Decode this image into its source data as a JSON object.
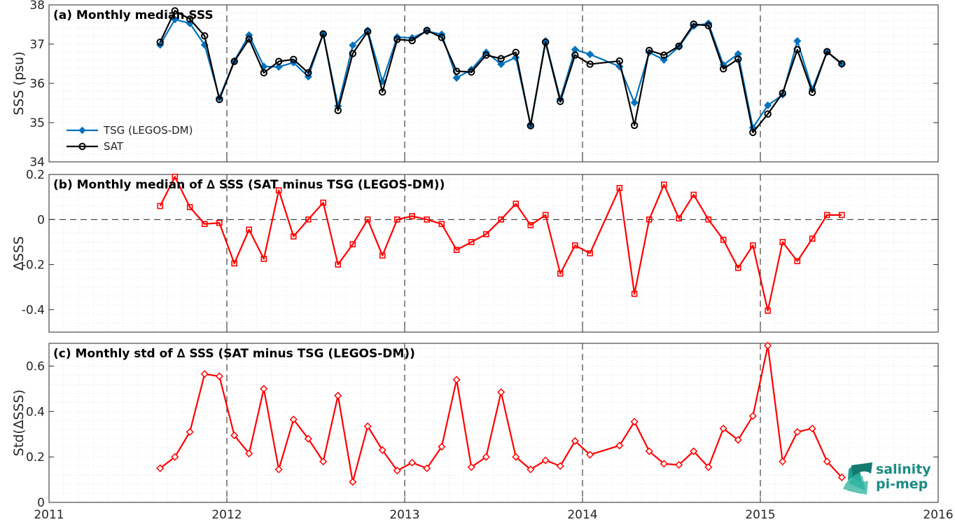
{
  "chart_data": [
    {
      "type": "line",
      "title": "(a) Monthly median SSS",
      "ylabel": "SSS (psu)",
      "xlim": [
        2011,
        2016
      ],
      "ylim": [
        34,
        38
      ],
      "yticks": [
        34,
        35,
        36,
        37,
        38
      ],
      "grid": true,
      "legend": "bottom-left",
      "x": [
        2011.625,
        2011.708,
        2011.792,
        2011.875,
        2011.958,
        2012.042,
        2012.125,
        2012.208,
        2012.292,
        2012.375,
        2012.458,
        2012.542,
        2012.625,
        2012.708,
        2012.792,
        2012.875,
        2012.958,
        2013.042,
        2013.125,
        2013.208,
        2013.292,
        2013.375,
        2013.458,
        2013.542,
        2013.625,
        2013.708,
        2013.792,
        2013.875,
        2013.958,
        2014.042,
        2014.208,
        2014.292,
        2014.375,
        2014.458,
        2014.542,
        2014.625,
        2014.708,
        2014.792,
        2014.875,
        2014.958,
        2015.042,
        2015.125,
        2015.208,
        2015.292,
        2015.375,
        2015.458
      ],
      "series": [
        {
          "name": "TSG (LEGOS-DM)",
          "color": "#0072BD",
          "marker": "diamond",
          "values": [
            36.98,
            37.63,
            37.53,
            36.98,
            35.63,
            36.57,
            37.23,
            36.43,
            36.42,
            36.53,
            36.17,
            37.26,
            35.42,
            36.97,
            37.35,
            36.05,
            37.18,
            37.16,
            37.33,
            37.25,
            36.14,
            36.35,
            36.79,
            36.49,
            36.66,
            34.94,
            37.08,
            35.6,
            36.86,
            36.74,
            36.43,
            35.51,
            36.79,
            36.6,
            36.93,
            37.46,
            37.53,
            36.47,
            36.75,
            34.87,
            35.44,
            35.71,
            37.08,
            35.85,
            36.8,
            36.49
          ]
        },
        {
          "name": "SAT",
          "color": "#000000",
          "marker": "circle",
          "values": [
            37.05,
            37.85,
            37.64,
            37.21,
            35.59,
            36.56,
            37.13,
            36.27,
            36.56,
            36.61,
            36.27,
            37.26,
            35.31,
            36.76,
            37.32,
            35.78,
            37.12,
            37.09,
            37.35,
            37.17,
            36.31,
            36.29,
            36.72,
            36.63,
            36.79,
            34.92,
            37.05,
            35.54,
            36.72,
            36.49,
            36.57,
            34.93,
            36.84,
            36.72,
            36.95,
            37.51,
            37.47,
            36.37,
            36.62,
            34.75,
            35.22,
            35.75,
            36.86,
            35.77,
            36.81,
            36.5
          ]
        }
      ]
    },
    {
      "type": "line",
      "title": "(b) Monthly median of ∆ SSS (SAT minus TSG (LEGOS-DM))",
      "ylabel": "∆SSS",
      "xlim": [
        2011,
        2016
      ],
      "ylim": [
        -0.5,
        0.2
      ],
      "yticks": [
        -0.4,
        -0.2,
        0,
        0.2
      ],
      "grid": true,
      "zero_line": true,
      "x": [
        2011.625,
        2011.708,
        2011.792,
        2011.875,
        2011.958,
        2012.042,
        2012.125,
        2012.208,
        2012.292,
        2012.375,
        2012.458,
        2012.542,
        2012.625,
        2012.708,
        2012.792,
        2012.875,
        2012.958,
        2013.042,
        2013.125,
        2013.208,
        2013.292,
        2013.375,
        2013.458,
        2013.542,
        2013.625,
        2013.708,
        2013.792,
        2013.875,
        2013.958,
        2014.042,
        2014.208,
        2014.292,
        2014.375,
        2014.458,
        2014.542,
        2014.625,
        2014.708,
        2014.792,
        2014.875,
        2014.958,
        2015.042,
        2015.125,
        2015.208,
        2015.292,
        2015.375,
        2015.458
      ],
      "series": [
        {
          "name": "",
          "color": "#FF0000",
          "marker": "square",
          "values": [
            0.06,
            0.19,
            0.055,
            -0.02,
            -0.015,
            -0.195,
            -0.045,
            -0.175,
            0.13,
            -0.075,
            0.0,
            0.075,
            -0.2,
            -0.11,
            0.0,
            -0.16,
            0.0,
            0.015,
            0.0,
            -0.02,
            -0.135,
            -0.1,
            -0.065,
            0.0,
            0.07,
            -0.025,
            0.02,
            -0.24,
            -0.115,
            -0.15,
            0.14,
            -0.33,
            0.0,
            0.155,
            0.005,
            0.11,
            0.0,
            -0.09,
            -0.215,
            -0.115,
            -0.405,
            -0.1,
            -0.185,
            -0.085,
            0.02,
            0.02
          ]
        }
      ]
    },
    {
      "type": "line",
      "title": "(c) Monthly std of ∆ SSS (SAT minus TSG (LEGOS-DM))",
      "ylabel": "Std(∆SSS)",
      "xlim": [
        2011,
        2016
      ],
      "ylim": [
        0,
        0.7
      ],
      "yticks": [
        0,
        0.2,
        0.4,
        0.6
      ],
      "xticks": [
        "2011",
        "2012",
        "2013",
        "2014",
        "2015",
        "2016"
      ],
      "grid": true,
      "x": [
        2011.625,
        2011.708,
        2011.792,
        2011.875,
        2011.958,
        2012.042,
        2012.125,
        2012.208,
        2012.292,
        2012.375,
        2012.458,
        2012.542,
        2012.625,
        2012.708,
        2012.792,
        2012.875,
        2012.958,
        2013.042,
        2013.125,
        2013.208,
        2013.292,
        2013.375,
        2013.458,
        2013.542,
        2013.625,
        2013.708,
        2013.792,
        2013.875,
        2013.958,
        2014.042,
        2014.208,
        2014.292,
        2014.375,
        2014.458,
        2014.542,
        2014.625,
        2014.708,
        2014.792,
        2014.875,
        2014.958,
        2015.042,
        2015.125,
        2015.208,
        2015.292,
        2015.375,
        2015.458
      ],
      "series": [
        {
          "name": "",
          "color": "#FF0000",
          "marker": "diamond",
          "values": [
            0.15,
            0.2,
            0.31,
            0.565,
            0.555,
            0.295,
            0.215,
            0.5,
            0.145,
            0.365,
            0.28,
            0.18,
            0.47,
            0.09,
            0.335,
            0.23,
            0.14,
            0.175,
            0.15,
            0.245,
            0.54,
            0.155,
            0.2,
            0.485,
            0.2,
            0.145,
            0.185,
            0.16,
            0.27,
            0.21,
            0.25,
            0.355,
            0.225,
            0.17,
            0.165,
            0.225,
            0.155,
            0.325,
            0.275,
            0.38,
            0.69,
            0.18,
            0.31,
            0.325,
            0.18,
            0.11
          ]
        }
      ]
    }
  ],
  "logo": {
    "line1": "salinity",
    "line2": "pi-mep"
  }
}
